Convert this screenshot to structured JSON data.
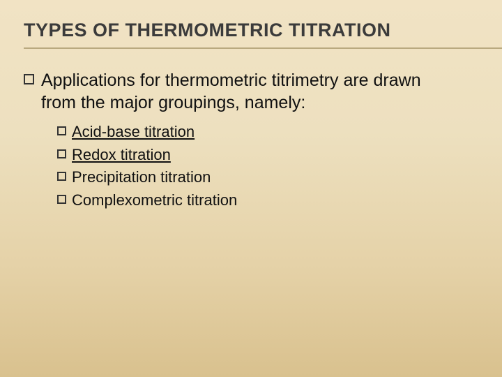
{
  "slide": {
    "title": "TYPES OF THERMOMETRIC TITRATION",
    "main_text": "Applications for thermometric titrimetry are drawn from the major groupings, namely:",
    "sub_items": [
      {
        "label": "Acid-base titration",
        "underline": true
      },
      {
        "label": "Redox titration",
        "underline": true
      },
      {
        "label": "Precipitation titration",
        "underline": false
      },
      {
        "label": "Complexometric titration",
        "underline": false
      }
    ]
  },
  "style": {
    "background_gradient": [
      "#f1e3c4",
      "#ede0bf",
      "#e5d2a8",
      "#d9c18e"
    ],
    "title_color": "#3b3b3b",
    "text_color": "#111111",
    "underline_color": "#b9a97f",
    "title_fontsize": 27,
    "main_fontsize": 25,
    "sub_fontsize": 22,
    "bullet_border": "#333333"
  }
}
